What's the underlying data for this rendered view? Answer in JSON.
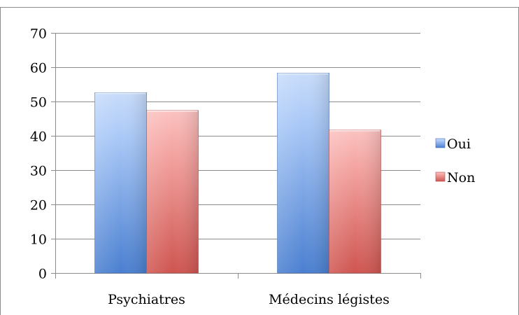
{
  "chart_data": {
    "type": "bar",
    "categories": [
      "Psychiatres",
      "Médecins légistes"
    ],
    "series": [
      {
        "name": "Oui",
        "values": [
          52.6,
          58.3
        ],
        "color": "#5b8fd8"
      },
      {
        "name": "Non",
        "values": [
          47.4,
          41.7
        ],
        "color": "#d9605a"
      }
    ],
    "ylim": [
      0,
      70
    ],
    "yticks": [
      0,
      10,
      20,
      30,
      40,
      50,
      60,
      70
    ],
    "grid": true,
    "legend_position": "right"
  }
}
